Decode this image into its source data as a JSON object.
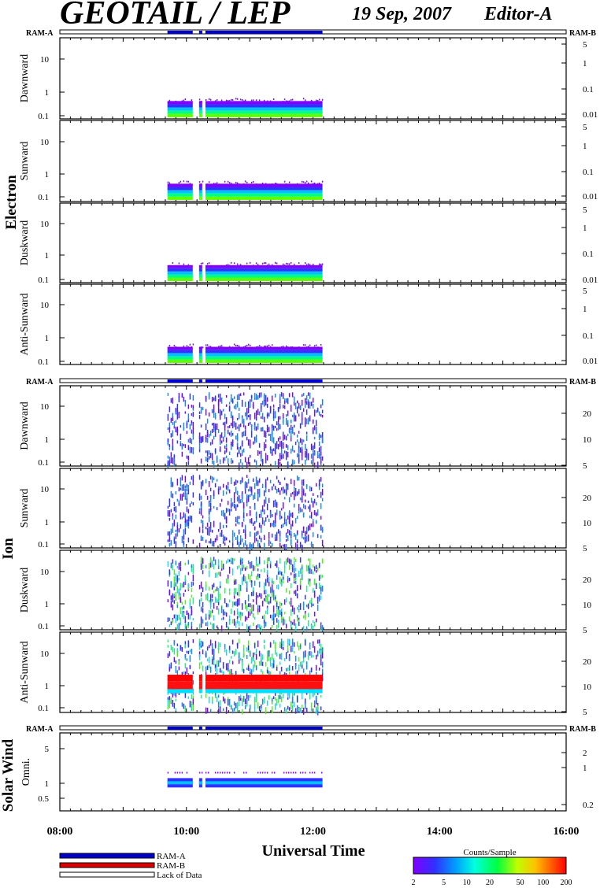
{
  "header": {
    "title": "GEOTAIL / LEP",
    "date": "19 Sep, 2007",
    "editor": "Editor-A"
  },
  "labels": {
    "ram_a": "RAM-A",
    "ram_b": "RAM-B",
    "electron": "Electron",
    "ion": "Ion",
    "solar_wind": "Solar Wind",
    "xlabel": "Universal Time",
    "colorbar_title": "Counts/Sample"
  },
  "legend": [
    {
      "label": "RAM-A",
      "color": "#0000cc"
    },
    {
      "label": "RAM-B",
      "color": "#dd0000"
    },
    {
      "label": "Lack of Data",
      "color": "#ffffff"
    }
  ],
  "colorbar": {
    "ticks": [
      "2",
      "5",
      "10",
      "20",
      "50",
      "100",
      "200"
    ]
  },
  "chart_data": {
    "type": "heatmap",
    "x_range_hours": [
      8,
      16
    ],
    "x_ticks": [
      "08:00",
      "10:00",
      "12:00",
      "14:00",
      "16:00"
    ],
    "data_coverage_hours": [
      [
        9.7,
        10.1
      ],
      [
        10.2,
        10.25
      ],
      [
        10.3,
        12.15
      ]
    ],
    "groups": [
      {
        "name": "Electron",
        "panels": [
          {
            "label": "Dawnward",
            "left_ticks": [
              "10",
              "1",
              "0.1"
            ],
            "right_ticks": [
              "5",
              "1",
              "0.1",
              "0.01"
            ]
          },
          {
            "label": "Sunward",
            "left_ticks": [
              "10",
              "1",
              "0.1"
            ],
            "right_ticks": [
              "5",
              "1",
              "0.1",
              "0.01"
            ]
          },
          {
            "label": "Duskward",
            "left_ticks": [
              "10",
              "1",
              "0.1"
            ],
            "right_ticks": [
              "5",
              "1",
              "0.1",
              "0.01"
            ]
          },
          {
            "label": "Anti-Sunward",
            "left_ticks": [
              "10",
              "1",
              "0.1"
            ],
            "right_ticks": [
              "5",
              "1",
              "0.1",
              "0.01"
            ]
          }
        ]
      },
      {
        "name": "Ion",
        "panels": [
          {
            "label": "Dawnward",
            "left_ticks": [
              "10",
              "1",
              "0.1"
            ],
            "right_ticks": [
              "20",
              "10",
              "5"
            ]
          },
          {
            "label": "Sunward",
            "left_ticks": [
              "10",
              "1",
              "0.1"
            ],
            "right_ticks": [
              "20",
              "10",
              "5"
            ]
          },
          {
            "label": "Duskward",
            "left_ticks": [
              "10",
              "1",
              "0.1"
            ],
            "right_ticks": [
              "20",
              "10",
              "5"
            ]
          },
          {
            "label": "Anti-Sunward",
            "left_ticks": [
              "10",
              "1",
              "0.1"
            ],
            "right_ticks": [
              "20",
              "10",
              "5"
            ]
          }
        ]
      },
      {
        "name": "Solar Wind",
        "panels": [
          {
            "label": "Omni.",
            "left_ticks": [
              "5",
              "1",
              "0.5"
            ],
            "right_ticks": [
              "2",
              "1",
              "0.2"
            ]
          }
        ]
      }
    ]
  }
}
